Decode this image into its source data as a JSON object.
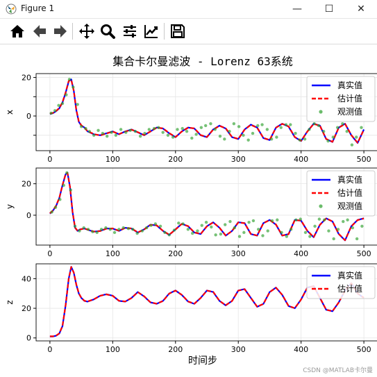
{
  "window": {
    "title": "Figure 1",
    "minimize": "—",
    "maximize": "☐",
    "close": "✕"
  },
  "toolbar": {
    "items": [
      "home-icon",
      "back-arrow-icon",
      "forward-arrow-icon",
      "pan-move-icon",
      "zoom-magnifier-icon",
      "subplots-sliders-icon",
      "edit-axes-chart-icon",
      "save-floppy-icon"
    ]
  },
  "figure_title": "集合卡尔曼滤波 - Lorenz 63系统",
  "xlabel": "时间步",
  "watermark": "CSDN @MATLAB卡尔曼",
  "colors": {
    "true": "#0000ff",
    "estimate": "#ff0000",
    "observed": "#2ca02c"
  },
  "chart_data": [
    {
      "type": "line",
      "ylabel": "x",
      "xlim": [
        -22,
        522
      ],
      "ylim": [
        -18,
        22
      ],
      "xticks": [
        0,
        100,
        200,
        300,
        400,
        500
      ],
      "yticks": [
        -10,
        0,
        10,
        20
      ],
      "ytick_labels": [
        "",
        "0",
        "",
        "20"
      ],
      "legend_position": "upper right",
      "series": [
        {
          "name": "真实值",
          "style": "solid",
          "color": "#0000ff",
          "x": [
            0,
            5,
            10,
            15,
            20,
            25,
            30,
            34,
            38,
            42,
            46,
            50,
            55,
            60,
            70,
            80,
            90,
            100,
            110,
            120,
            130,
            140,
            150,
            160,
            170,
            180,
            190,
            200,
            210,
            220,
            230,
            240,
            250,
            260,
            270,
            280,
            290,
            300,
            310,
            320,
            330,
            340,
            350,
            360,
            370,
            380,
            390,
            400,
            410,
            420,
            430,
            440,
            450,
            460,
            470,
            480,
            490,
            500
          ],
          "y": [
            1,
            1.5,
            2.5,
            4,
            7,
            12,
            18,
            19,
            13,
            3,
            -3,
            -5,
            -6,
            -8,
            -9.5,
            -10,
            -9,
            -8,
            -9.5,
            -8,
            -7,
            -8.5,
            -10,
            -8,
            -6,
            -6.5,
            -9,
            -11,
            -8,
            -6,
            -6.5,
            -10,
            -11,
            -7,
            -5,
            -6.5,
            -11,
            -12,
            -7,
            -4.5,
            -6,
            -11.5,
            -12.5,
            -6,
            -4,
            -5.5,
            -11,
            -13,
            -8,
            -4,
            -5,
            -12,
            -13.5,
            -6,
            -4,
            -10,
            -14,
            -7
          ]
        },
        {
          "name": "估计值",
          "style": "dashed",
          "color": "#ff0000",
          "x": [
            0,
            5,
            10,
            15,
            20,
            25,
            30,
            34,
            38,
            42,
            46,
            50,
            55,
            60,
            70,
            80,
            90,
            100,
            110,
            120,
            130,
            140,
            150,
            160,
            170,
            180,
            190,
            200,
            210,
            220,
            230,
            240,
            250,
            260,
            270,
            280,
            290,
            300,
            310,
            320,
            330,
            340,
            350,
            360,
            370,
            380,
            390,
            400,
            410,
            420,
            430,
            440,
            450,
            460,
            470,
            480,
            490,
            500
          ],
          "y": [
            1.2,
            1.6,
            2.6,
            4.2,
            7.2,
            12.2,
            18.2,
            18.8,
            13,
            3.2,
            -2.8,
            -4.8,
            -6.1,
            -7.9,
            -9.4,
            -10.1,
            -9.1,
            -8.1,
            -9.4,
            -8.1,
            -7.1,
            -8.4,
            -9.9,
            -8.1,
            -6.1,
            -6.4,
            -8.9,
            -10.9,
            -8.1,
            -6.1,
            -6.4,
            -9.9,
            -10.9,
            -7.1,
            -5.1,
            -6.4,
            -10.9,
            -11.9,
            -7.1,
            -4.6,
            -6.1,
            -11.4,
            -12.4,
            -6.1,
            -4.1,
            -5.4,
            -10.9,
            -12.9,
            -8.1,
            -4.1,
            -5.1,
            -11.9,
            -13.4,
            -6.1,
            -4.1,
            -9.9,
            -13.9,
            -7.1
          ]
        },
        {
          "name": "观测值",
          "style": "points",
          "color": "#2ca02c",
          "x": [
            2,
            8,
            14,
            20,
            26,
            31,
            37,
            44,
            50,
            57,
            63,
            70,
            77,
            84,
            91,
            98,
            105,
            113,
            121,
            128,
            136,
            144,
            151,
            158,
            166,
            173,
            180,
            188,
            196,
            203,
            211,
            218,
            226,
            233,
            241,
            248,
            256,
            263,
            271,
            278,
            286,
            293,
            301,
            308,
            316,
            323,
            331,
            338,
            346,
            353,
            361,
            368,
            376,
            383,
            391,
            398,
            406,
            413,
            421,
            428,
            436,
            443,
            451,
            458,
            466,
            473,
            481,
            488,
            496
          ],
          "y": [
            1.5,
            2.8,
            5.5,
            6.5,
            11,
            19,
            15,
            6,
            -5.5,
            -6.5,
            -8,
            -10,
            -7.5,
            -9,
            -10.5,
            -8.5,
            -10,
            -7,
            -8.5,
            -7.5,
            -8,
            -10.5,
            -9,
            -7,
            -6.5,
            -6,
            -8.5,
            -10,
            -11,
            -7,
            -6.5,
            -8,
            -11.5,
            -9.5,
            -6,
            -5,
            -4,
            -7,
            -10.5,
            -12,
            -8,
            -4,
            -5.5,
            -10,
            -12.5,
            -9,
            -5,
            -4.5,
            -7,
            -12,
            -11,
            -6,
            -4.5,
            -4.5,
            -9,
            -12.5,
            -12,
            -7,
            -4,
            -5,
            -8,
            -13,
            -11,
            -6,
            -4,
            -8,
            -15,
            -11,
            -6
          ]
        }
      ]
    },
    {
      "type": "line",
      "ylabel": "y",
      "xlim": [
        -22,
        522
      ],
      "ylim": [
        -19,
        30
      ],
      "xticks": [
        0,
        100,
        200,
        300,
        400,
        500
      ],
      "yticks": [
        0,
        20
      ],
      "ytick_labels": [
        "0",
        "20"
      ],
      "legend_position": "upper right",
      "series": [
        {
          "name": "真实值",
          "style": "solid",
          "color": "#0000ff",
          "x": [
            0,
            5,
            10,
            15,
            20,
            25,
            28,
            32,
            36,
            40,
            44,
            48,
            55,
            62,
            70,
            80,
            90,
            100,
            110,
            120,
            130,
            140,
            150,
            160,
            170,
            180,
            190,
            200,
            210,
            220,
            230,
            240,
            250,
            260,
            270,
            280,
            290,
            300,
            310,
            320,
            330,
            340,
            350,
            360,
            370,
            380,
            390,
            400,
            410,
            420,
            430,
            440,
            450,
            460,
            470,
            480,
            490,
            500
          ],
          "y": [
            1,
            3,
            6,
            11,
            19,
            26,
            27,
            18,
            2,
            -8,
            -10,
            -9,
            -8.5,
            -9.5,
            -10.5,
            -10,
            -8.5,
            -8.5,
            -10,
            -8,
            -8.5,
            -11,
            -9,
            -6,
            -6.5,
            -10,
            -12.5,
            -9,
            -5.5,
            -7,
            -11,
            -12,
            -7,
            -4.5,
            -8,
            -13,
            -10,
            -4.5,
            -5,
            -12,
            -13,
            -5,
            -3,
            -6,
            -13,
            -12,
            -3,
            -3.5,
            -10,
            -14,
            -6,
            -2,
            -4,
            -12,
            -16,
            -7,
            -3,
            -2
          ],
          "_note": ""
        },
        {
          "name": "估计值",
          "style": "dashed",
          "color": "#ff0000",
          "x": [
            0,
            5,
            10,
            15,
            20,
            25,
            28,
            32,
            36,
            40,
            44,
            48,
            55,
            62,
            70,
            80,
            90,
            100,
            110,
            120,
            130,
            140,
            150,
            160,
            170,
            180,
            190,
            200,
            210,
            220,
            230,
            240,
            250,
            260,
            270,
            280,
            290,
            300,
            310,
            320,
            330,
            340,
            350,
            360,
            370,
            380,
            390,
            400,
            410,
            420,
            430,
            440,
            450,
            460,
            470,
            480,
            490,
            500
          ],
          "y": [
            1.2,
            3.1,
            6.2,
            11.1,
            19.2,
            26.1,
            26.8,
            18.1,
            2.2,
            -7.8,
            -9.9,
            -9.1,
            -8.4,
            -9.4,
            -10.4,
            -10.1,
            -8.6,
            -8.4,
            -9.9,
            -8.1,
            -8.4,
            -10.9,
            -9.1,
            -6.1,
            -6.4,
            -9.9,
            -12.4,
            -9.1,
            -5.6,
            -6.9,
            -10.9,
            -11.9,
            -7.1,
            -4.6,
            -7.9,
            -12.9,
            -10.1,
            -4.6,
            -5.1,
            -11.9,
            -12.9,
            -5.1,
            -3.1,
            -5.9,
            -12.9,
            -12.1,
            -3.1,
            -3.4,
            -9.9,
            -13.9,
            -6.1,
            -2.1,
            -3.9,
            -11.9,
            -15.9,
            -7.1,
            -3.1,
            -2.1
          ]
        },
        {
          "name": "观测值",
          "style": "points",
          "color": "#2ca02c",
          "x": [
            3,
            9,
            16,
            22,
            27,
            33,
            40,
            47,
            54,
            61,
            68,
            75,
            82,
            89,
            96,
            103,
            110,
            117,
            125,
            132,
            139,
            147,
            154,
            161,
            168,
            176,
            183,
            190,
            198,
            205,
            212,
            220,
            227,
            235,
            242,
            249,
            257,
            264,
            272,
            279,
            287,
            294,
            302,
            309,
            317,
            324,
            332,
            339,
            347,
            354,
            362,
            369,
            377,
            384,
            392,
            399,
            407,
            414,
            422,
            429,
            437,
            444,
            452,
            459,
            467,
            474,
            482,
            489,
            497
          ],
          "y": [
            2,
            5,
            10,
            19,
            27,
            16,
            -7,
            -10,
            -8,
            -9,
            -10.5,
            -11,
            -9,
            -8,
            -9,
            -11,
            -9,
            -8,
            -8.5,
            -9,
            -11.5,
            -10,
            -8,
            -6.5,
            -5.5,
            -7,
            -11,
            -12.5,
            -9.5,
            -5,
            -5.5,
            -9,
            -11.5,
            -10,
            -6.5,
            -4.5,
            -7.5,
            -12.5,
            -12,
            -6,
            -4,
            -8,
            -13.5,
            -11,
            -4.5,
            -3.5,
            -9,
            -13,
            -10,
            -3.5,
            -3,
            -11,
            -13.5,
            -9,
            -3,
            -2.5,
            -11,
            -13.5,
            -7,
            -2.5,
            -3,
            -10,
            -15,
            -9,
            -4,
            -3,
            -8,
            -15,
            -7
          ]
        }
      ]
    },
    {
      "type": "line",
      "ylabel": "z",
      "xlim": [
        -22,
        522
      ],
      "ylim": [
        -2,
        50
      ],
      "xticks": [
        0,
        100,
        200,
        300,
        400,
        500
      ],
      "yticks": [
        0,
        20,
        40
      ],
      "ytick_labels": [
        "0",
        "20",
        "40"
      ],
      "legend_position": "upper right",
      "series": [
        {
          "name": "真实值",
          "style": "solid",
          "color": "#0000ff",
          "x": [
            0,
            5,
            10,
            15,
            20,
            25,
            30,
            34,
            38,
            42,
            46,
            50,
            55,
            60,
            70,
            80,
            90,
            100,
            110,
            120,
            130,
            140,
            150,
            160,
            170,
            180,
            190,
            200,
            210,
            220,
            230,
            240,
            250,
            260,
            270,
            280,
            290,
            300,
            310,
            320,
            330,
            340,
            350,
            360,
            370,
            380,
            390,
            400,
            410,
            420,
            430,
            440,
            450,
            460,
            470,
            480,
            490,
            500
          ],
          "y": [
            1,
            1,
            1.5,
            3,
            8,
            22,
            40,
            48,
            44,
            36,
            30,
            27,
            25,
            24.5,
            26,
            28.5,
            29.5,
            28.5,
            25,
            24.5,
            27,
            31,
            28,
            24,
            23,
            25,
            30,
            32,
            29,
            24.5,
            23,
            27,
            32,
            31,
            25,
            22,
            25,
            32,
            33,
            27,
            21,
            23,
            31,
            34,
            29,
            21.5,
            20,
            26,
            34,
            35,
            27,
            19,
            18,
            24,
            32,
            37,
            30,
            27
          ]
        },
        {
          "name": "估计值",
          "style": "dashed",
          "color": "#ff0000",
          "x": [
            0,
            5,
            10,
            15,
            20,
            25,
            30,
            34,
            38,
            42,
            46,
            50,
            55,
            60,
            70,
            80,
            90,
            100,
            110,
            120,
            130,
            140,
            150,
            160,
            170,
            180,
            190,
            200,
            210,
            220,
            230,
            240,
            250,
            260,
            270,
            280,
            290,
            300,
            310,
            320,
            330,
            340,
            350,
            360,
            370,
            380,
            390,
            400,
            410,
            420,
            430,
            440,
            450,
            460,
            470,
            480,
            490,
            500
          ],
          "y": [
            1.1,
            1.1,
            1.6,
            3.1,
            8.1,
            22.1,
            40.1,
            47.9,
            44,
            36.1,
            30.1,
            27.1,
            25.1,
            24.6,
            26.1,
            28.4,
            29.4,
            28.4,
            25.1,
            24.6,
            26.9,
            30.9,
            28.1,
            24.1,
            23.1,
            24.9,
            29.9,
            31.9,
            29.1,
            24.6,
            23.1,
            26.9,
            31.9,
            31.1,
            25.1,
            22.1,
            24.9,
            31.9,
            32.9,
            27.1,
            21.1,
            22.9,
            30.9,
            33.9,
            29.1,
            21.6,
            20.1,
            25.9,
            33.9,
            34.9,
            27.1,
            19.1,
            18.1,
            23.9,
            31.9,
            36.9,
            30.1,
            27.1
          ]
        }
      ]
    }
  ]
}
